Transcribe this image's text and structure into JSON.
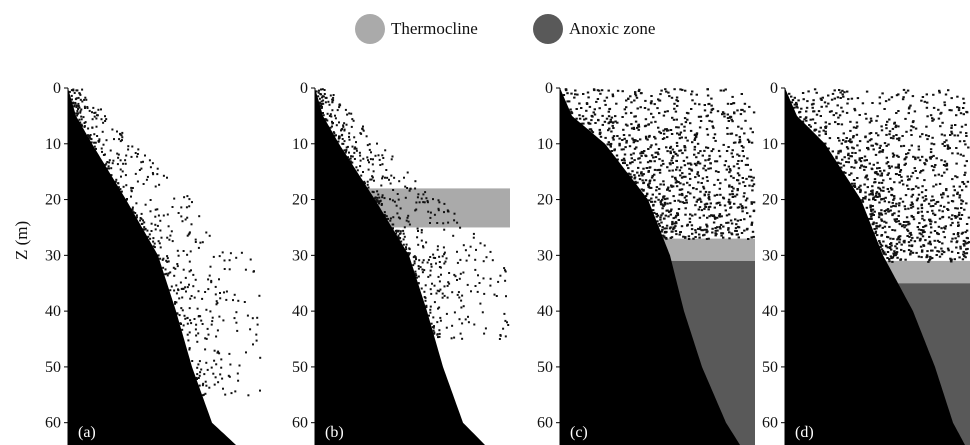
{
  "legend": [
    {
      "label": "Thermocline",
      "color": "#aaaaaa"
    },
    {
      "label": "Anoxic zone",
      "color": "#595959"
    }
  ],
  "y_axis_label": "Z (m)",
  "chart_data": [
    {
      "type": "area",
      "panel_label": "(a)",
      "ylabel": "Z (m)",
      "ylim": [
        0,
        64
      ],
      "y_ticks": [
        0,
        10,
        20,
        30,
        40,
        50,
        60
      ],
      "bottom_profile": {
        "depth": [
          0,
          5,
          10,
          20,
          30,
          40,
          50,
          60,
          64
        ],
        "distance": [
          0,
          8,
          24,
          58,
          90,
          108,
          124,
          144,
          168
        ]
      },
      "scatter_band": {
        "depth_range": [
          0,
          55
        ],
        "density": "sparse"
      },
      "thermocline": null,
      "anoxic_zone": null
    },
    {
      "type": "area",
      "panel_label": "(b)",
      "ylabel": "",
      "ylim": [
        0,
        64
      ],
      "y_ticks": [
        0,
        10,
        20,
        30,
        40,
        50,
        60
      ],
      "bottom_profile": {
        "depth": [
          0,
          5,
          10,
          20,
          30,
          40,
          50,
          60,
          64
        ],
        "distance": [
          0,
          8,
          24,
          60,
          94,
          112,
          128,
          148,
          170
        ]
      },
      "scatter_band": {
        "depth_range": [
          0,
          45
        ],
        "density": "sparse"
      },
      "thermocline": [
        18,
        25
      ],
      "anoxic_zone": null
    },
    {
      "type": "area",
      "panel_label": "(c)",
      "ylabel": "",
      "ylim": [
        0,
        64
      ],
      "y_ticks": [
        0,
        10,
        20,
        30,
        40,
        50,
        60
      ],
      "bottom_profile": {
        "depth": [
          0,
          5,
          10,
          20,
          30,
          40,
          50,
          60,
          64
        ],
        "distance": [
          0,
          12,
          45,
          88,
          110,
          124,
          142,
          166,
          180
        ]
      },
      "scatter_band": {
        "depth_range": [
          0,
          27
        ],
        "density": "dense"
      },
      "thermocline": [
        27,
        31
      ],
      "anoxic_zone": [
        31,
        64
      ]
    },
    {
      "type": "area",
      "panel_label": "(d)",
      "ylabel": "",
      "ylim": [
        0,
        64
      ],
      "y_ticks": [
        0,
        10,
        20,
        30,
        40,
        50,
        60
      ],
      "bottom_profile": {
        "depth": [
          0,
          5,
          10,
          20,
          30,
          40,
          50,
          60,
          64
        ],
        "distance": [
          0,
          12,
          40,
          76,
          98,
          128,
          150,
          168,
          180
        ]
      },
      "scatter_band": {
        "depth_range": [
          0,
          31
        ],
        "density": "dense"
      },
      "thermocline": [
        31,
        35
      ],
      "anoxic_zone": [
        35,
        64
      ]
    }
  ]
}
